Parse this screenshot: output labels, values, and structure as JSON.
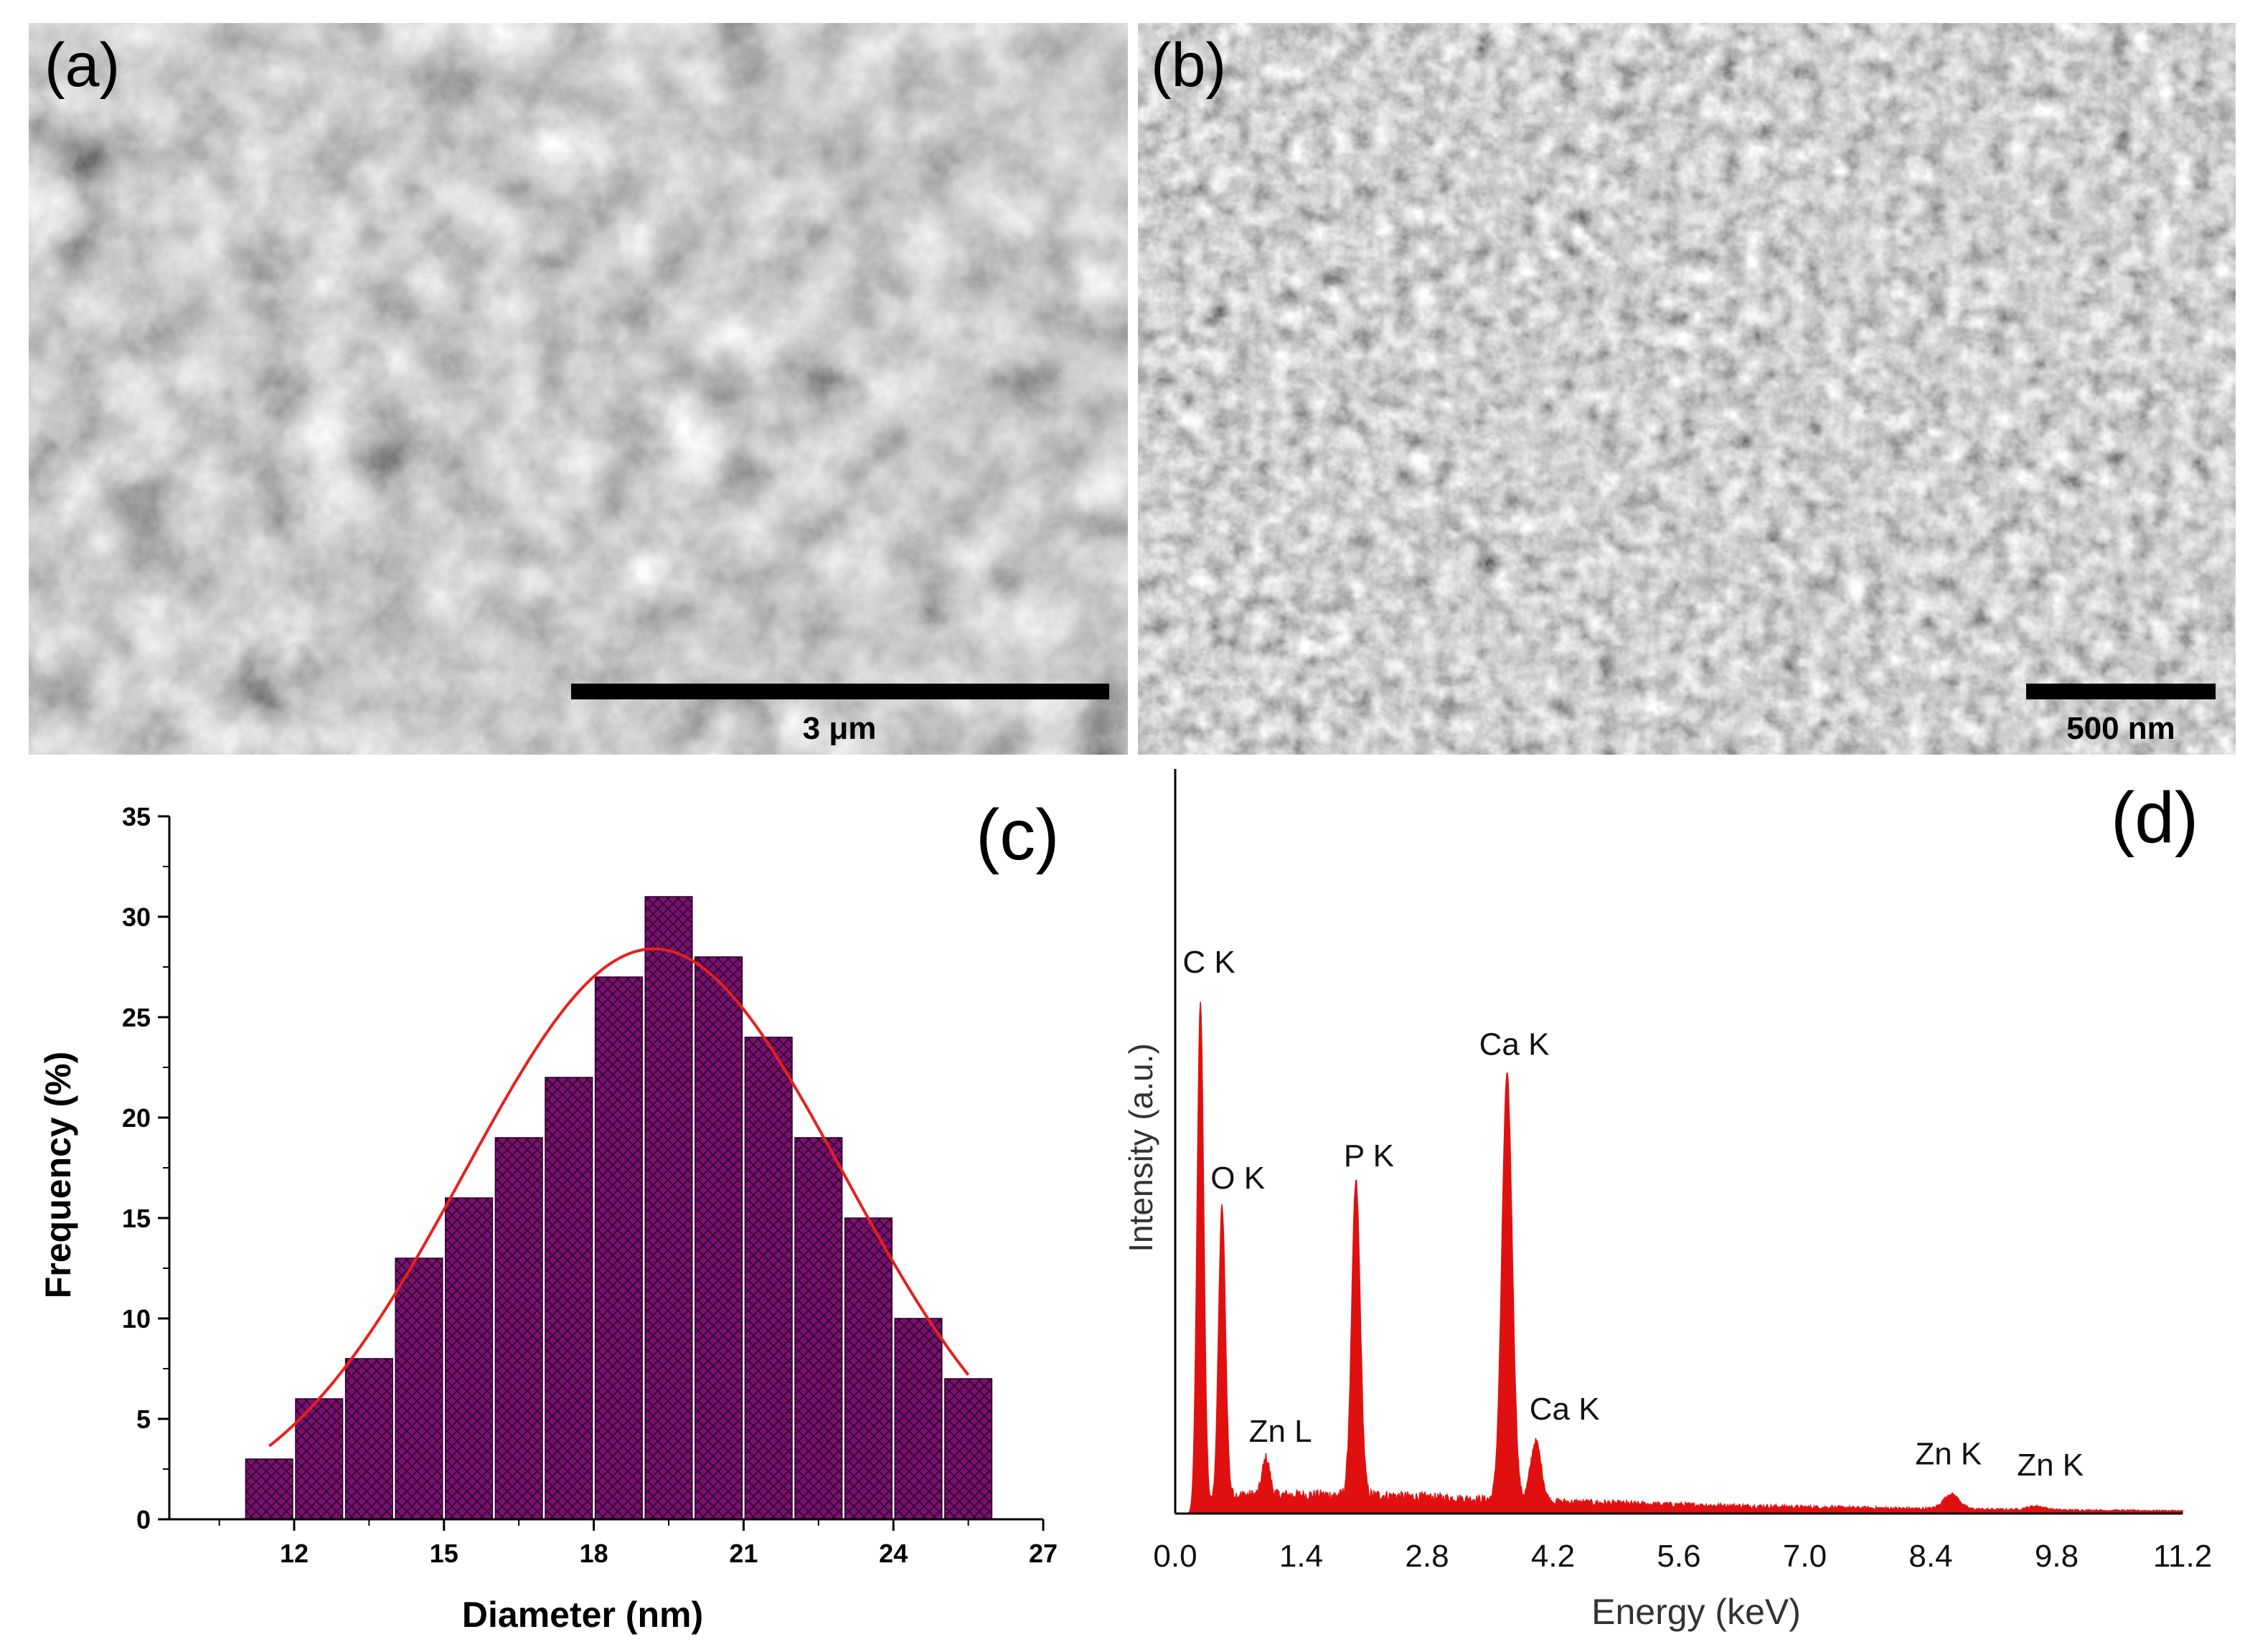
{
  "panels": {
    "a": {
      "label": "(a)",
      "scale_bar": "3 μm"
    },
    "b": {
      "label": "(b)",
      "scale_bar": "500 nm"
    },
    "c": {
      "label": "(c)"
    },
    "d": {
      "label": "(d)"
    }
  },
  "colors": {
    "bar_fill": "#7a1070",
    "fit_line": "#e8201c",
    "spectrum": "#e01010",
    "axis": "#000000"
  },
  "chart_data": [
    {
      "type": "bar",
      "panel": "c",
      "title": "",
      "xlabel": "Diameter (nm)",
      "ylabel": "Frequency (%)",
      "xlim": [
        9.5,
        27
      ],
      "ylim": [
        0,
        35
      ],
      "xticks": [
        12,
        15,
        18,
        21,
        24,
        27
      ],
      "yticks": [
        0,
        5,
        10,
        15,
        20,
        25,
        30,
        35
      ],
      "bin_width": 1,
      "bin_centers": [
        11.5,
        12.5,
        13.5,
        14.5,
        15.5,
        16.5,
        17.5,
        18.5,
        19.5,
        20.5,
        21.5,
        22.5,
        23.5,
        24.5,
        25.5
      ],
      "values": [
        3,
        6,
        8,
        13,
        16,
        19,
        22,
        27,
        31,
        28,
        24,
        19,
        15,
        10,
        7
      ],
      "fit": {
        "type": "gaussian",
        "amplitude": 28.4,
        "mean": 19.2,
        "sigma": 3.8,
        "x_range": [
          11.5,
          25.5
        ]
      }
    },
    {
      "type": "line",
      "panel": "d",
      "title": "",
      "xlabel": "Energy (keV)",
      "ylabel": "Intensity (a.u.)",
      "xlim": [
        0,
        11.2
      ],
      "ylim": [
        0,
        100
      ],
      "xticks": [
        "0.0",
        "1.4",
        "2.8",
        "4.2",
        "5.6",
        "7.0",
        "8.4",
        "9.8",
        "11.2"
      ],
      "peaks": [
        {
          "label": "C K",
          "energy": 0.28,
          "intensity": 68
        },
        {
          "label": "O K",
          "energy": 0.52,
          "intensity": 39
        },
        {
          "label": "Zn L",
          "energy": 1.01,
          "intensity": 5
        },
        {
          "label": "P K",
          "energy": 2.01,
          "intensity": 42
        },
        {
          "label": "Ca K",
          "energy": 3.69,
          "intensity": 57
        },
        {
          "label": "Ca K",
          "energy": 4.01,
          "intensity": 8
        },
        {
          "label": "Zn K",
          "energy": 8.63,
          "intensity": 2
        },
        {
          "label": "Zn K",
          "energy": 9.57,
          "intensity": 0.5
        }
      ],
      "background_level": 2.5
    }
  ]
}
